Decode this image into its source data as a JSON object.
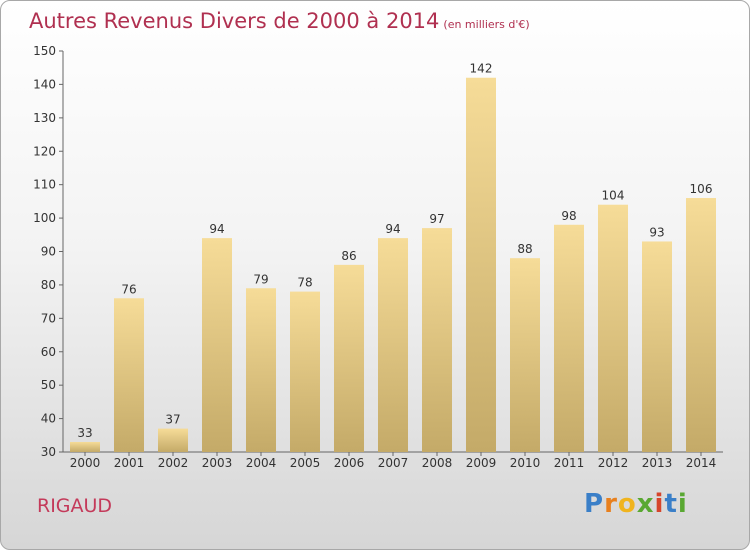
{
  "title": "Autres Revenus Divers de 2000 à 2014",
  "subtitle": "(en milliers d'€)",
  "commune": "RIGAUD",
  "logo": "Proxiti",
  "colors": {
    "title": "#b03050",
    "bar_top": "#f6dc98",
    "bar_bottom": "#c4aa68"
  },
  "chart_data": {
    "type": "bar",
    "title": "Autres Revenus Divers de 2000 à 2014",
    "subtitle": "(en milliers d'€)",
    "categories": [
      "2000",
      "2001",
      "2002",
      "2003",
      "2004",
      "2005",
      "2006",
      "2007",
      "2008",
      "2009",
      "2010",
      "2011",
      "2012",
      "2013",
      "2014"
    ],
    "values": [
      33,
      76,
      37,
      94,
      79,
      78,
      86,
      94,
      97,
      142,
      88,
      98,
      104,
      93,
      106
    ],
    "ylim": [
      30,
      150
    ],
    "yticks": [
      30,
      40,
      50,
      60,
      70,
      80,
      90,
      100,
      110,
      120,
      130,
      140,
      150
    ],
    "grid": false,
    "data_labels": true
  }
}
